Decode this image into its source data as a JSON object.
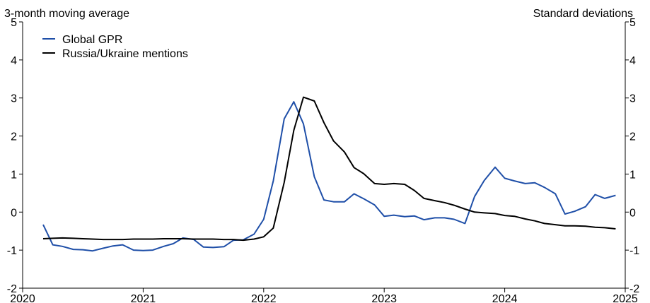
{
  "chart_data": {
    "type": "line",
    "left_axis_label": "3-month moving average",
    "right_axis_label": "Standard deviations",
    "ylim": [
      -2,
      5
    ],
    "xlim": [
      2020,
      2025
    ],
    "yticks": [
      -2,
      -1,
      0,
      1,
      2,
      3,
      4,
      5
    ],
    "xticks": [
      2020,
      2021,
      2022,
      2023,
      2024,
      2025
    ],
    "legend_position": "top-left",
    "grid": false,
    "series": [
      {
        "name": "Global GPR",
        "color": "#1f4fa8",
        "x": [
          2020.17,
          2020.25,
          2020.33,
          2020.42,
          2020.5,
          2020.58,
          2020.67,
          2020.75,
          2020.83,
          2020.92,
          2021.0,
          2021.08,
          2021.17,
          2021.25,
          2021.33,
          2021.42,
          2021.5,
          2021.58,
          2021.67,
          2021.75,
          2021.83,
          2021.92,
          2022.0,
          2022.08,
          2022.17,
          2022.25,
          2022.33,
          2022.42,
          2022.5,
          2022.58,
          2022.67,
          2022.75,
          2022.83,
          2022.92,
          2023.0,
          2023.08,
          2023.17,
          2023.25,
          2023.33,
          2023.42,
          2023.5,
          2023.58,
          2023.67,
          2023.75,
          2023.83,
          2023.92,
          2024.0,
          2024.08,
          2024.17,
          2024.25,
          2024.33,
          2024.42,
          2024.5,
          2024.58,
          2024.67,
          2024.75,
          2024.83,
          2024.92
        ],
        "y": [
          -0.33,
          -0.86,
          -0.9,
          -0.98,
          -0.99,
          -1.02,
          -0.95,
          -0.89,
          -0.86,
          -1.0,
          -1.01,
          -1.0,
          -0.9,
          -0.83,
          -0.68,
          -0.72,
          -0.92,
          -0.93,
          -0.91,
          -0.74,
          -0.73,
          -0.58,
          -0.19,
          0.82,
          2.45,
          2.9,
          2.32,
          0.93,
          0.32,
          0.27,
          0.27,
          0.48,
          0.35,
          0.19,
          -0.11,
          -0.08,
          -0.12,
          -0.1,
          -0.2,
          -0.15,
          -0.15,
          -0.19,
          -0.3,
          0.41,
          0.83,
          1.18,
          0.89,
          0.82,
          0.75,
          0.77,
          0.65,
          0.48,
          -0.05,
          0.02,
          0.14,
          0.46,
          0.36,
          0.44
        ]
      },
      {
        "name": "Russia/Ukraine mentions",
        "color": "#000000",
        "x": [
          2020.17,
          2020.25,
          2020.33,
          2020.42,
          2020.5,
          2020.58,
          2020.67,
          2020.75,
          2020.83,
          2020.92,
          2021.0,
          2021.08,
          2021.17,
          2021.25,
          2021.33,
          2021.42,
          2021.5,
          2021.58,
          2021.67,
          2021.75,
          2021.83,
          2021.92,
          2022.0,
          2022.08,
          2022.17,
          2022.25,
          2022.33,
          2022.42,
          2022.5,
          2022.58,
          2022.67,
          2022.75,
          2022.83,
          2022.92,
          2023.0,
          2023.08,
          2023.17,
          2023.25,
          2023.33,
          2023.42,
          2023.5,
          2023.58,
          2023.67,
          2023.75,
          2023.83,
          2023.92,
          2024.0,
          2024.08,
          2024.17,
          2024.25,
          2024.33,
          2024.42,
          2024.5,
          2024.58,
          2024.67,
          2024.75,
          2024.83,
          2024.92
        ],
        "y": [
          -0.7,
          -0.69,
          -0.68,
          -0.69,
          -0.7,
          -0.71,
          -0.72,
          -0.72,
          -0.72,
          -0.71,
          -0.71,
          -0.71,
          -0.7,
          -0.7,
          -0.7,
          -0.71,
          -0.71,
          -0.71,
          -0.72,
          -0.72,
          -0.74,
          -0.71,
          -0.65,
          -0.42,
          0.78,
          2.15,
          3.02,
          2.92,
          2.35,
          1.87,
          1.58,
          1.17,
          1.01,
          0.75,
          0.73,
          0.75,
          0.73,
          0.57,
          0.36,
          0.3,
          0.25,
          0.18,
          0.08,
          0.0,
          -0.02,
          -0.04,
          -0.09,
          -0.11,
          -0.18,
          -0.23,
          -0.3,
          -0.33,
          -0.36,
          -0.36,
          -0.37,
          -0.4,
          -0.41,
          -0.44
        ]
      }
    ]
  }
}
